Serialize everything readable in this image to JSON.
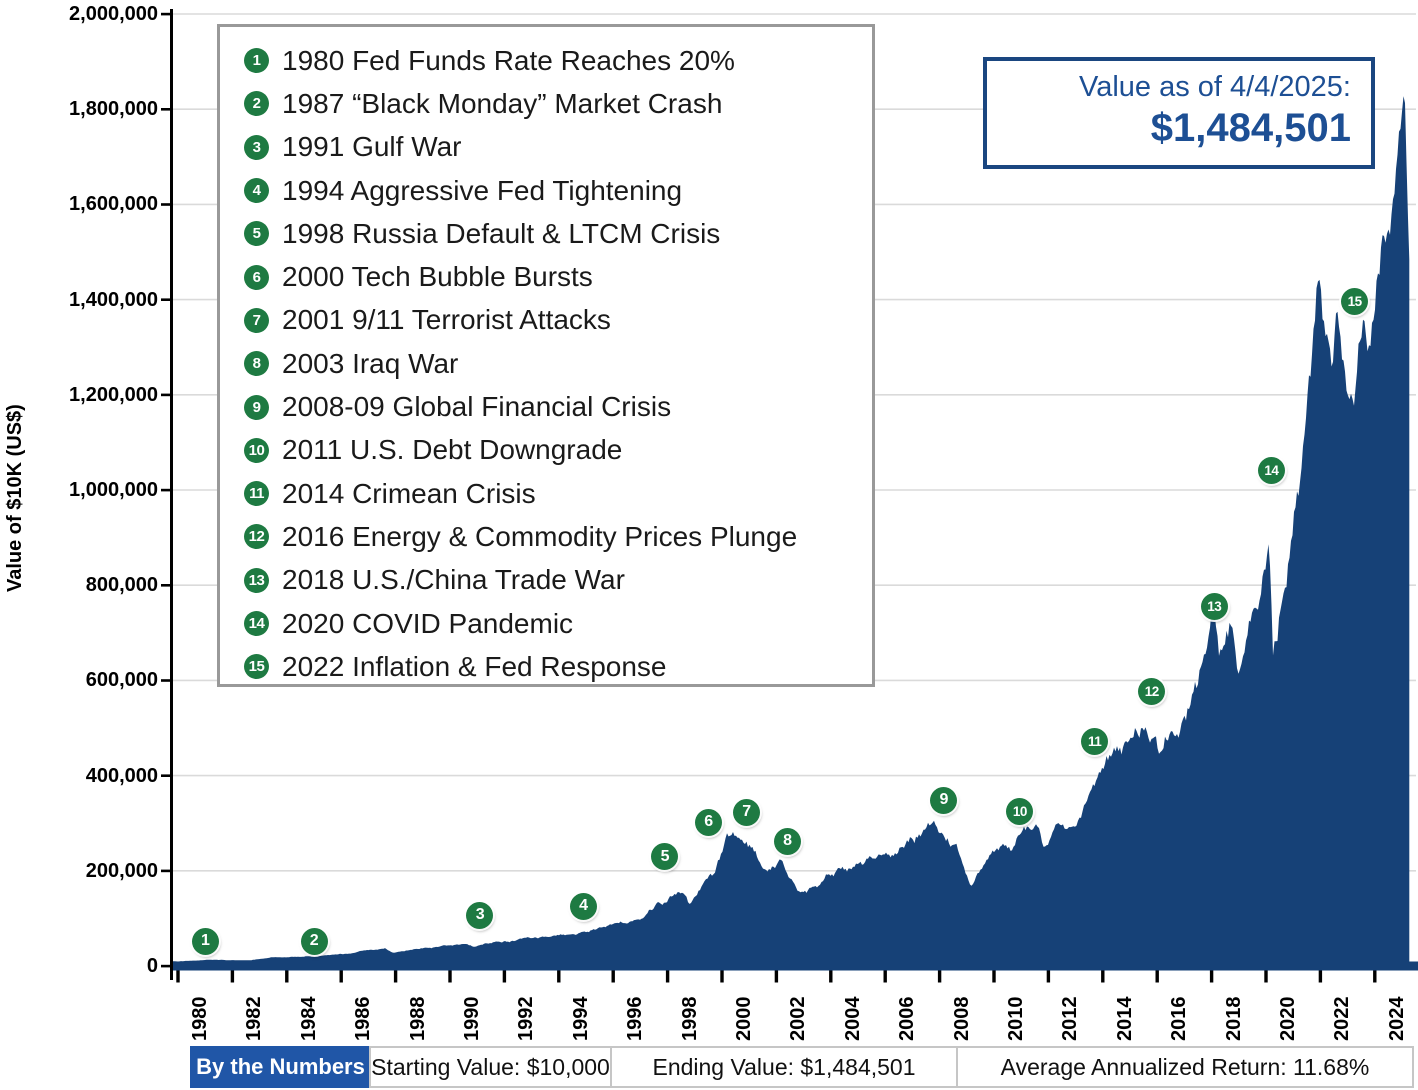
{
  "y_axis": {
    "title": "Value of $10K (US$)",
    "tick_labels": [
      "0",
      "200,000",
      "400,000",
      "600,000",
      "800,000",
      "1,000,000",
      "1,200,000",
      "1,400,000",
      "1,600,000",
      "1,800,000",
      "2,000,000"
    ]
  },
  "x_axis": {
    "tick_labels": [
      "1980",
      "1982",
      "1984",
      "1986",
      "1988",
      "1990",
      "1992",
      "1994",
      "1996",
      "1998",
      "2000",
      "2002",
      "2004",
      "2006",
      "2008",
      "2010",
      "2012",
      "2014",
      "2016",
      "2018",
      "2020",
      "2022",
      "2024"
    ]
  },
  "value_box": {
    "label": "Value as of 4/4/2025:",
    "amount": "$1,484,501"
  },
  "legend": {
    "items": [
      {
        "num": "1",
        "label": "1980 Fed Funds Rate Reaches 20%"
      },
      {
        "num": "2",
        "label": "1987 “Black Monday” Market Crash"
      },
      {
        "num": "3",
        "label": "1991 Gulf War"
      },
      {
        "num": "4",
        "label": "1994 Aggressive Fed Tightening"
      },
      {
        "num": "5",
        "label": "1998 Russia Default & LTCM Crisis"
      },
      {
        "num": "6",
        "label": "2000 Tech Bubble Bursts"
      },
      {
        "num": "7",
        "label": "2001 9/11 Terrorist Attacks"
      },
      {
        "num": "8",
        "label": "2003 Iraq War"
      },
      {
        "num": "9",
        "label": "2008-09 Global Financial Crisis"
      },
      {
        "num": "10",
        "label": "2011 U.S. Debt Downgrade"
      },
      {
        "num": "11",
        "label": "2014 Crimean Crisis"
      },
      {
        "num": "12",
        "label": "2016 Energy & Commodity Prices Plunge"
      },
      {
        "num": "13",
        "label": "2018 U.S./China Trade War"
      },
      {
        "num": "14",
        "label": "2020 COVID Pandemic"
      },
      {
        "num": "15",
        "label": "2022 Inflation & Fed Response"
      }
    ]
  },
  "footer": {
    "tab": "By the Numbers",
    "cells": [
      "Starting Value: $10,000",
      "Ending Value: $1,484,501",
      "Average Annualized Return: 11.68%"
    ]
  },
  "colors": {
    "area_navy": "#164177",
    "marker_green": "#1E7A42",
    "tab_blue": "#2056A7",
    "value_navy": "#1D4F94",
    "gridline": "#DADADA",
    "axis_black": "#000000"
  },
  "chart_data": {
    "type": "area",
    "ylabel": "Value of $10K (US$)",
    "xlabel": "",
    "x_range": [
      1980,
      2025.27
    ],
    "y_range": [
      0,
      2000000
    ],
    "grid": true,
    "ending_value": 1484501,
    "starting_value": 10000,
    "average_annualized_return_pct": 11.68,
    "series": [
      {
        "name": "Value of $10K (US$)",
        "points": [
          [
            1980.0,
            10000
          ],
          [
            1980.5,
            11600
          ],
          [
            1981.1,
            13200
          ],
          [
            1981.7,
            12200
          ],
          [
            1982.6,
            11600
          ],
          [
            1983.5,
            17200
          ],
          [
            1984.5,
            17600
          ],
          [
            1985.5,
            22500
          ],
          [
            1986.5,
            28000
          ],
          [
            1987.6,
            38500
          ],
          [
            1987.9,
            27500
          ],
          [
            1988.5,
            31500
          ],
          [
            1989.8,
            41500
          ],
          [
            1990.5,
            43500
          ],
          [
            1990.9,
            38000
          ],
          [
            1991.3,
            47500
          ],
          [
            1992.0,
            52500
          ],
          [
            1993.0,
            58500
          ],
          [
            1994.1,
            64000
          ],
          [
            1994.5,
            61500
          ],
          [
            1995.0,
            65500
          ],
          [
            1996.0,
            89000
          ],
          [
            1996.7,
            99000
          ],
          [
            1997.6,
            135000
          ],
          [
            1997.8,
            128000
          ],
          [
            1998.55,
            163000
          ],
          [
            1998.8,
            139000
          ],
          [
            1999.1,
            170000
          ],
          [
            1999.7,
            192000
          ],
          [
            2000.2,
            272000
          ],
          [
            2000.65,
            256000
          ],
          [
            2001.1,
            236000
          ],
          [
            2001.72,
            197000
          ],
          [
            2002.2,
            219000
          ],
          [
            2002.8,
            158000
          ],
          [
            2003.2,
            163000
          ],
          [
            2003.9,
            199000
          ],
          [
            2004.8,
            208000
          ],
          [
            2005.6,
            224000
          ],
          [
            2006.5,
            249000
          ],
          [
            2007.3,
            292000
          ],
          [
            2007.78,
            326000
          ],
          [
            2008.3,
            291000
          ],
          [
            2008.6,
            268000
          ],
          [
            2008.95,
            192000
          ],
          [
            2009.2,
            169000
          ],
          [
            2009.8,
            226000
          ],
          [
            2010.35,
            249000
          ],
          [
            2010.6,
            230000
          ],
          [
            2011.0,
            263000
          ],
          [
            2011.55,
            283000
          ],
          [
            2011.8,
            241000
          ],
          [
            2012.2,
            268000
          ],
          [
            2012.75,
            273000
          ],
          [
            2013.4,
            331000
          ],
          [
            2014.0,
            406000
          ],
          [
            2014.9,
            456000
          ],
          [
            2015.55,
            489000
          ],
          [
            2015.72,
            450000
          ],
          [
            2015.95,
            470000
          ],
          [
            2016.12,
            444000
          ],
          [
            2016.6,
            496000
          ],
          [
            2017.0,
            526000
          ],
          [
            2017.95,
            646000
          ],
          [
            2018.08,
            696000
          ],
          [
            2018.3,
            632000
          ],
          [
            2018.73,
            706000
          ],
          [
            2019.0,
            612000
          ],
          [
            2019.35,
            702000
          ],
          [
            2019.75,
            736000
          ],
          [
            2020.12,
            896000
          ],
          [
            2020.26,
            668000
          ],
          [
            2020.7,
            812000
          ],
          [
            2021.0,
            962000
          ],
          [
            2021.45,
            1072000
          ],
          [
            2021.92,
            1332000
          ],
          [
            2022.1,
            1242000
          ],
          [
            2022.45,
            1132000
          ],
          [
            2022.62,
            1232000
          ],
          [
            2022.78,
            1122000
          ],
          [
            2023.05,
            1092000
          ],
          [
            2023.35,
            1172000
          ],
          [
            2023.6,
            1292000
          ],
          [
            2023.82,
            1232000
          ],
          [
            2024.12,
            1402000
          ],
          [
            2024.42,
            1492000
          ],
          [
            2024.58,
            1442000
          ],
          [
            2024.78,
            1562000
          ],
          [
            2025.0,
            1702000
          ],
          [
            2025.1,
            1784000
          ],
          [
            2025.2,
            1600000
          ],
          [
            2025.27,
            1484501
          ]
        ]
      }
    ],
    "annotations": [
      {
        "num": "1",
        "year": 1981.0,
        "value": 52000
      },
      {
        "num": "2",
        "year": 1985.0,
        "value": 52000
      },
      {
        "num": "3",
        "year": 1991.1,
        "value": 107000
      },
      {
        "num": "4",
        "year": 1994.9,
        "value": 126000
      },
      {
        "num": "5",
        "year": 1997.9,
        "value": 229000
      },
      {
        "num": "6",
        "year": 1999.5,
        "value": 302000
      },
      {
        "num": "7",
        "year": 2000.9,
        "value": 323000
      },
      {
        "num": "8",
        "year": 2002.4,
        "value": 262000
      },
      {
        "num": "9",
        "year": 2008.15,
        "value": 348000
      },
      {
        "num": "10",
        "year": 2010.95,
        "value": 325000
      },
      {
        "num": "11",
        "year": 2013.7,
        "value": 472000
      },
      {
        "num": "12",
        "year": 2015.8,
        "value": 577000
      },
      {
        "num": "13",
        "year": 2018.1,
        "value": 755000
      },
      {
        "num": "14",
        "year": 2020.2,
        "value": 1040000
      },
      {
        "num": "15",
        "year": 2023.26,
        "value": 1395000
      }
    ]
  }
}
